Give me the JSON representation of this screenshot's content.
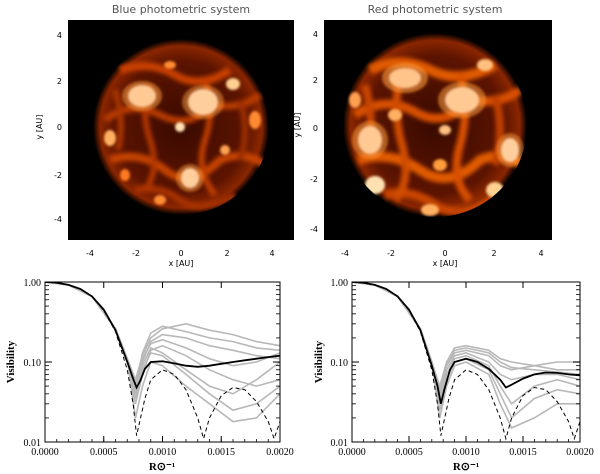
{
  "images": [
    {
      "title": "Blue photometric system",
      "xlabel": "x [AU]",
      "ylabel": "y [AU]",
      "ticks": [
        "-4",
        "-2",
        "0",
        "2",
        "4"
      ],
      "colormap": [
        "#000000",
        "#7a1a00",
        "#d24a00",
        "#ff9d3c",
        "#ffffff"
      ]
    },
    {
      "title": "Red photometric system",
      "xlabel": "x [AU]",
      "ylabel": "y [AU]",
      "ticks": [
        "-4",
        "-2",
        "0",
        "2",
        "4"
      ],
      "colormap": [
        "#000000",
        "#7a1a00",
        "#d24a00",
        "#ff9d3c",
        "#ffffff"
      ]
    }
  ],
  "chart_data": [
    {
      "type": "line",
      "xlabel": "R⊙⁻¹",
      "ylabel": "Visibility",
      "xlim": [
        0.0,
        0.002
      ],
      "ylim": [
        0.01,
        1.0
      ],
      "yscale": "log",
      "xticks": [
        "0.0000",
        "0.0005",
        "0.0010",
        "0.0015",
        "0.0020"
      ],
      "yticks": [
        "1.00",
        "0.10",
        "0.01"
      ],
      "series_colors": {
        "mean": "#000000",
        "snapshots": "#b8b8b8",
        "limb_darkened": "#000000"
      },
      "mean_x": [
        0.0,
        0.0001,
        0.0002,
        0.0003,
        0.0004,
        0.0005,
        0.0006,
        0.0007,
        0.00075,
        0.00078,
        0.00081,
        0.00085,
        0.0009,
        0.001,
        0.0011,
        0.0012,
        0.0013,
        0.0014,
        0.0015,
        0.0016,
        0.0017,
        0.0018,
        0.0019,
        0.002
      ],
      "mean_y": [
        1.0,
        0.98,
        0.92,
        0.82,
        0.66,
        0.45,
        0.25,
        0.1,
        0.062,
        0.048,
        0.058,
        0.082,
        0.1,
        0.102,
        0.096,
        0.09,
        0.087,
        0.09,
        0.095,
        0.1,
        0.105,
        0.11,
        0.115,
        0.12
      ],
      "limb_darkened_x": [
        0.0,
        0.0001,
        0.0002,
        0.0003,
        0.0004,
        0.0005,
        0.0006,
        0.0007,
        0.00075,
        0.00078,
        0.00085,
        0.0009,
        0.001,
        0.0011,
        0.0012,
        0.0013,
        0.00135,
        0.0014,
        0.0015,
        0.0016,
        0.0017,
        0.0018,
        0.0019,
        0.00195,
        0.002
      ],
      "limb_darkened_y": [
        1.0,
        0.98,
        0.92,
        0.82,
        0.66,
        0.44,
        0.24,
        0.08,
        0.03,
        0.012,
        0.035,
        0.06,
        0.08,
        0.07,
        0.045,
        0.02,
        0.011,
        0.02,
        0.038,
        0.048,
        0.045,
        0.032,
        0.018,
        0.011,
        0.018
      ],
      "snapshots": [
        {
          "x": [
            0.0,
            0.0002,
            0.0004,
            0.0006,
            0.0007,
            0.00077,
            0.00083,
            0.0009,
            0.001,
            0.0012,
            0.0014,
            0.0016,
            0.0018,
            0.002
          ],
          "y": [
            1.0,
            0.92,
            0.66,
            0.26,
            0.11,
            0.045,
            0.1,
            0.18,
            0.22,
            0.2,
            0.16,
            0.14,
            0.12,
            0.11
          ]
        },
        {
          "x": [
            0.0,
            0.0002,
            0.0004,
            0.0006,
            0.0007,
            0.00077,
            0.00083,
            0.0009,
            0.001,
            0.0012,
            0.0014,
            0.0016,
            0.0018,
            0.002
          ],
          "y": [
            1.0,
            0.92,
            0.66,
            0.26,
            0.11,
            0.03,
            0.07,
            0.14,
            0.16,
            0.12,
            0.08,
            0.06,
            0.05,
            0.06
          ]
        },
        {
          "x": [
            0.0,
            0.0002,
            0.0004,
            0.0006,
            0.0007,
            0.00077,
            0.00083,
            0.0009,
            0.001,
            0.0012,
            0.0014,
            0.0016,
            0.0018,
            0.002
          ],
          "y": [
            1.0,
            0.92,
            0.66,
            0.26,
            0.11,
            0.06,
            0.12,
            0.2,
            0.26,
            0.3,
            0.25,
            0.22,
            0.18,
            0.16
          ]
        },
        {
          "x": [
            0.0,
            0.0002,
            0.0004,
            0.0006,
            0.0007,
            0.00077,
            0.00083,
            0.0009,
            0.001,
            0.0012,
            0.0014,
            0.0016,
            0.0018,
            0.002
          ],
          "y": [
            1.0,
            0.92,
            0.66,
            0.26,
            0.11,
            0.02,
            0.05,
            0.1,
            0.09,
            0.05,
            0.03,
            0.018,
            0.02,
            0.04
          ]
        },
        {
          "x": [
            0.0,
            0.0002,
            0.0004,
            0.0006,
            0.0007,
            0.00077,
            0.00083,
            0.0009,
            0.001,
            0.0012,
            0.0014,
            0.0016,
            0.0018,
            0.002
          ],
          "y": [
            1.0,
            0.92,
            0.66,
            0.26,
            0.11,
            0.04,
            0.09,
            0.15,
            0.13,
            0.08,
            0.05,
            0.04,
            0.06,
            0.1
          ]
        },
        {
          "x": [
            0.0,
            0.0002,
            0.0004,
            0.0006,
            0.0007,
            0.00077,
            0.00083,
            0.0009,
            0.001,
            0.0012,
            0.0014,
            0.0016,
            0.0018,
            0.002
          ],
          "y": [
            1.0,
            0.92,
            0.66,
            0.26,
            0.11,
            0.05,
            0.11,
            0.17,
            0.19,
            0.15,
            0.11,
            0.09,
            0.1,
            0.13
          ]
        },
        {
          "x": [
            0.0,
            0.0002,
            0.0004,
            0.0006,
            0.0007,
            0.00077,
            0.00083,
            0.0009,
            0.001,
            0.0012,
            0.0014,
            0.0016,
            0.0018,
            0.002
          ],
          "y": [
            1.0,
            0.92,
            0.66,
            0.26,
            0.11,
            0.035,
            0.08,
            0.13,
            0.12,
            0.07,
            0.04,
            0.025,
            0.03,
            0.05
          ]
        },
        {
          "x": [
            0.0,
            0.0002,
            0.0004,
            0.0006,
            0.0007,
            0.00077,
            0.00083,
            0.0009,
            0.001,
            0.0012,
            0.0014,
            0.0016,
            0.0018,
            0.002
          ],
          "y": [
            1.0,
            0.92,
            0.66,
            0.26,
            0.11,
            0.05,
            0.13,
            0.23,
            0.28,
            0.24,
            0.2,
            0.18,
            0.15,
            0.14
          ]
        }
      ]
    },
    {
      "type": "line",
      "xlabel": "R⊙⁻¹",
      "ylabel": "Visibility",
      "xlim": [
        0.0,
        0.002
      ],
      "ylim": [
        0.01,
        1.0
      ],
      "yscale": "log",
      "xticks": [
        "0.0000",
        "0.0005",
        "0.0010",
        "0.0015",
        "0.0020"
      ],
      "yticks": [
        "1.00",
        "0.10",
        "0.01"
      ],
      "series_colors": {
        "mean": "#000000",
        "snapshots": "#b8b8b8",
        "limb_darkened": "#000000"
      },
      "mean_x": [
        0.0,
        0.0001,
        0.0002,
        0.0003,
        0.0004,
        0.0005,
        0.0006,
        0.0007,
        0.00075,
        0.00078,
        0.00081,
        0.00086,
        0.0009,
        0.001,
        0.0011,
        0.0012,
        0.0013,
        0.00135,
        0.0014,
        0.0015,
        0.0016,
        0.0017,
        0.0018,
        0.0019,
        0.002
      ],
      "mean_y": [
        1.0,
        0.98,
        0.92,
        0.82,
        0.66,
        0.45,
        0.25,
        0.09,
        0.05,
        0.03,
        0.045,
        0.08,
        0.1,
        0.11,
        0.1,
        0.082,
        0.06,
        0.048,
        0.052,
        0.062,
        0.07,
        0.074,
        0.073,
        0.07,
        0.068
      ],
      "limb_darkened_x": [
        0.0,
        0.0001,
        0.0002,
        0.0003,
        0.0004,
        0.0005,
        0.0006,
        0.0007,
        0.00075,
        0.00078,
        0.00085,
        0.0009,
        0.001,
        0.0011,
        0.0012,
        0.0013,
        0.00135,
        0.0014,
        0.0015,
        0.0016,
        0.0017,
        0.0018,
        0.0019,
        0.00195,
        0.002
      ],
      "limb_darkened_y": [
        1.0,
        0.98,
        0.92,
        0.82,
        0.66,
        0.44,
        0.24,
        0.08,
        0.03,
        0.012,
        0.035,
        0.06,
        0.08,
        0.07,
        0.045,
        0.02,
        0.011,
        0.02,
        0.038,
        0.048,
        0.045,
        0.032,
        0.018,
        0.011,
        0.018
      ],
      "snapshots": [
        {
          "x": [
            0.0,
            0.0002,
            0.0004,
            0.0006,
            0.0007,
            0.00077,
            0.00083,
            0.0009,
            0.001,
            0.0012,
            0.0013,
            0.0014,
            0.0016,
            0.0018,
            0.002
          ],
          "y": [
            1.0,
            0.92,
            0.66,
            0.26,
            0.1,
            0.04,
            0.09,
            0.13,
            0.14,
            0.12,
            0.09,
            0.08,
            0.09,
            0.1,
            0.1
          ]
        },
        {
          "x": [
            0.0,
            0.0002,
            0.0004,
            0.0006,
            0.0007,
            0.00077,
            0.00083,
            0.0009,
            0.001,
            0.0012,
            0.0013,
            0.0014,
            0.0016,
            0.0018,
            0.002
          ],
          "y": [
            1.0,
            0.92,
            0.66,
            0.26,
            0.1,
            0.03,
            0.07,
            0.11,
            0.12,
            0.09,
            0.05,
            0.03,
            0.05,
            0.06,
            0.05
          ]
        },
        {
          "x": [
            0.0,
            0.0002,
            0.0004,
            0.0006,
            0.0007,
            0.00077,
            0.00083,
            0.0009,
            0.001,
            0.0012,
            0.0013,
            0.0014,
            0.0016,
            0.0018,
            0.002
          ],
          "y": [
            1.0,
            0.92,
            0.66,
            0.26,
            0.1,
            0.05,
            0.1,
            0.15,
            0.16,
            0.14,
            0.11,
            0.1,
            0.09,
            0.08,
            0.08
          ]
        },
        {
          "x": [
            0.0,
            0.0002,
            0.0004,
            0.0006,
            0.0007,
            0.00077,
            0.00083,
            0.0009,
            0.001,
            0.0012,
            0.0013,
            0.0014,
            0.0016,
            0.0018,
            0.002
          ],
          "y": [
            1.0,
            0.92,
            0.66,
            0.26,
            0.1,
            0.02,
            0.05,
            0.09,
            0.1,
            0.07,
            0.03,
            0.015,
            0.02,
            0.03,
            0.03
          ]
        },
        {
          "x": [
            0.0,
            0.0002,
            0.0004,
            0.0006,
            0.0007,
            0.00077,
            0.00083,
            0.0009,
            0.001,
            0.0012,
            0.0013,
            0.0014,
            0.0016,
            0.0018,
            0.002
          ],
          "y": [
            1.0,
            0.92,
            0.66,
            0.26,
            0.1,
            0.035,
            0.08,
            0.12,
            0.13,
            0.1,
            0.07,
            0.06,
            0.07,
            0.07,
            0.06
          ]
        },
        {
          "x": [
            0.0,
            0.0002,
            0.0004,
            0.0006,
            0.0007,
            0.00077,
            0.00083,
            0.0009,
            0.001,
            0.0012,
            0.0013,
            0.0014,
            0.0016,
            0.0018,
            0.002
          ],
          "y": [
            1.0,
            0.92,
            0.66,
            0.26,
            0.1,
            0.045,
            0.095,
            0.14,
            0.15,
            0.13,
            0.1,
            0.085,
            0.08,
            0.075,
            0.07
          ]
        },
        {
          "x": [
            0.0,
            0.0002,
            0.0004,
            0.0006,
            0.0007,
            0.00077,
            0.00083,
            0.0009,
            0.001,
            0.0012,
            0.0013,
            0.0014,
            0.0016,
            0.0018,
            0.002
          ],
          "y": [
            1.0,
            0.92,
            0.66,
            0.26,
            0.1,
            0.025,
            0.06,
            0.1,
            0.11,
            0.08,
            0.04,
            0.02,
            0.035,
            0.045,
            0.04
          ]
        }
      ]
    }
  ]
}
